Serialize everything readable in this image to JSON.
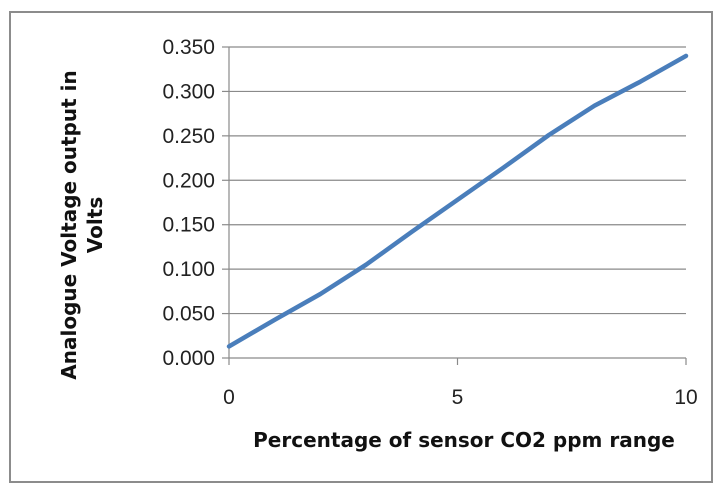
{
  "chart_data": {
    "type": "line",
    "title": "",
    "xlabel": "Percentage of sensor CO2 ppm range",
    "ylabel_lines": [
      "Analogue Voltage output in",
      "Volts"
    ],
    "xlim": [
      0,
      10
    ],
    "ylim": [
      0,
      0.35
    ],
    "x_ticks": [
      0,
      5,
      10
    ],
    "x_tick_labels": [
      "0",
      "5",
      "10"
    ],
    "y_ticks": [
      0,
      0.05,
      0.1,
      0.15,
      0.2,
      0.25,
      0.3,
      0.35
    ],
    "y_tick_labels": [
      "0.000",
      "0.050",
      "0.100",
      "0.150",
      "0.200",
      "0.250",
      "0.300",
      "0.350"
    ],
    "grid": "horizontal",
    "legend": "none",
    "series": [
      {
        "color": "#4a7ebb",
        "x": [
          0,
          1,
          2,
          3,
          4,
          5,
          6,
          7,
          8,
          9,
          10
        ],
        "y": [
          0.013,
          0.043,
          0.072,
          0.105,
          0.142,
          0.178,
          0.214,
          0.251,
          0.284,
          0.311,
          0.34
        ]
      }
    ]
  }
}
